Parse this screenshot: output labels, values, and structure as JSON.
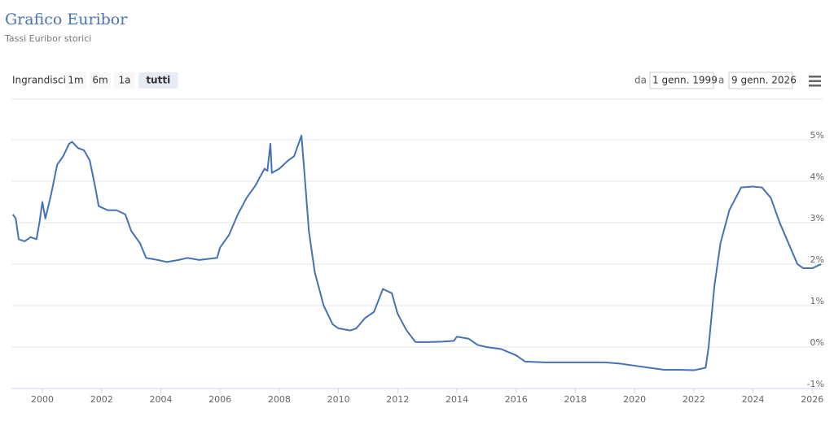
{
  "chart_data": {
    "type": "line",
    "title": "Grafico Euribor",
    "subtitle": "Tassi Euribor storici",
    "range_selector": {
      "label": "Ingrandisci",
      "buttons": [
        "1m",
        "6m",
        "1a",
        "tutti"
      ],
      "selected": 3
    },
    "date_range": {
      "from_label": "da",
      "from": "1 genn. 1999",
      "to_label": "a",
      "to": "9 genn. 2026"
    },
    "color": "#4572b3",
    "grid": true,
    "xlim": [
      1999,
      2026.35
    ],
    "xticks": [
      2000,
      2002,
      2004,
      2006,
      2008,
      2010,
      2012,
      2014,
      2016,
      2018,
      2020,
      2022,
      2024,
      2026
    ],
    "ylim": [
      -1,
      5.9
    ],
    "yticks": [
      {
        "value": -1,
        "label": "-1%"
      },
      {
        "value": 0,
        "label": "0%"
      },
      {
        "value": 1,
        "label": "1%"
      },
      {
        "value": 2,
        "label": "2%"
      },
      {
        "value": 3,
        "label": "3%"
      },
      {
        "value": 4,
        "label": "4%"
      },
      {
        "value": 5,
        "label": "5%"
      }
    ],
    "x": [
      1999.0,
      1999.1,
      1999.2,
      1999.4,
      1999.6,
      1999.8,
      1999.9,
      2000.0,
      2000.1,
      2000.3,
      2000.5,
      2000.7,
      2000.9,
      2001.0,
      2001.2,
      2001.4,
      2001.6,
      2001.8,
      2001.9,
      2002.2,
      2002.5,
      2002.8,
      2003.0,
      2003.3,
      2003.5,
      2003.9,
      2004.2,
      2004.6,
      2004.9,
      2005.3,
      2005.9,
      2006.0,
      2006.3,
      2006.6,
      2006.9,
      2007.2,
      2007.5,
      2007.6,
      2007.7,
      2007.75,
      2008.0,
      2008.3,
      2008.5,
      2008.75,
      2008.85,
      2009.0,
      2009.2,
      2009.5,
      2009.8,
      2010.0,
      2010.4,
      2010.6,
      2010.9,
      2011.2,
      2011.5,
      2011.8,
      2012.0,
      2012.3,
      2012.6,
      2013.0,
      2013.5,
      2013.9,
      2014.0,
      2014.4,
      2014.7,
      2015.0,
      2015.5,
      2016.0,
      2016.3,
      2017.0,
      2018.0,
      2019.0,
      2019.5,
      2020.0,
      2020.5,
      2021.0,
      2021.5,
      2022.0,
      2022.4,
      2022.5,
      2022.7,
      2022.9,
      2023.2,
      2023.6,
      2024.0,
      2024.3,
      2024.6,
      2024.9,
      2025.2,
      2025.5,
      2025.7,
      2026.0,
      2026.3
    ],
    "values": [
      3.2,
      3.1,
      2.6,
      2.55,
      2.65,
      2.6,
      3.0,
      3.5,
      3.1,
      3.7,
      4.4,
      4.6,
      4.9,
      4.95,
      4.8,
      4.75,
      4.5,
      3.8,
      3.4,
      3.3,
      3.3,
      3.2,
      2.8,
      2.5,
      2.15,
      2.1,
      2.05,
      2.1,
      2.15,
      2.1,
      2.15,
      2.4,
      2.7,
      3.2,
      3.6,
      3.9,
      4.3,
      4.25,
      4.9,
      4.2,
      4.3,
      4.5,
      4.6,
      5.1,
      4.2,
      2.8,
      1.8,
      1.0,
      0.55,
      0.45,
      0.4,
      0.45,
      0.7,
      0.85,
      1.4,
      1.3,
      0.8,
      0.4,
      0.12,
      0.12,
      0.13,
      0.15,
      0.25,
      0.2,
      0.05,
      0.0,
      -0.05,
      -0.2,
      -0.35,
      -0.37,
      -0.37,
      -0.37,
      -0.4,
      -0.45,
      -0.5,
      -0.55,
      -0.55,
      -0.56,
      -0.5,
      0.0,
      1.5,
      2.5,
      3.3,
      3.85,
      3.87,
      3.85,
      3.6,
      3.0,
      2.5,
      2.0,
      1.9,
      1.9,
      2.0
    ]
  }
}
